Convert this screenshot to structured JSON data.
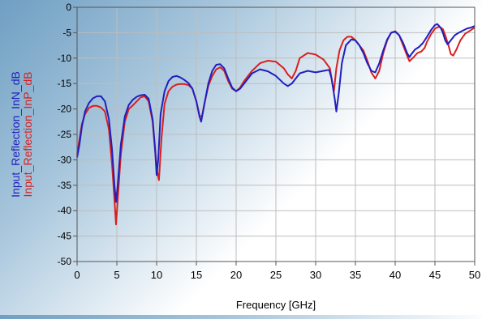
{
  "chart_data": {
    "type": "line",
    "title": "",
    "xlabel": "Frequency [GHz]",
    "ylabel": "",
    "xlim": [
      0,
      50
    ],
    "ylim": [
      -50,
      0
    ],
    "x_ticks": [
      0,
      5,
      10,
      15,
      20,
      25,
      30,
      35,
      40,
      45,
      50
    ],
    "y_ticks": [
      0,
      -5,
      -10,
      -15,
      -20,
      -25,
      -30,
      -35,
      -40,
      -45,
      -50
    ],
    "grid": true,
    "legend_placement": "left-vertical",
    "series": [
      {
        "name": "Input_Reflection_InN_dB",
        "color": "#1f1fbf",
        "points": [
          [
            0,
            -29.5
          ],
          [
            0.3,
            -27
          ],
          [
            0.6,
            -23.5
          ],
          [
            1,
            -20.5
          ],
          [
            1.5,
            -18.8
          ],
          [
            2,
            -17.9
          ],
          [
            2.5,
            -17.5
          ],
          [
            3,
            -17.5
          ],
          [
            3.5,
            -18.5
          ],
          [
            4,
            -22
          ],
          [
            4.4,
            -28
          ],
          [
            4.7,
            -35
          ],
          [
            4.9,
            -38.3
          ],
          [
            5.1,
            -35
          ],
          [
            5.5,
            -27
          ],
          [
            6,
            -21.5
          ],
          [
            6.5,
            -19.2
          ],
          [
            7,
            -18.2
          ],
          [
            7.5,
            -17.6
          ],
          [
            8,
            -17.3
          ],
          [
            8.5,
            -17.2
          ],
          [
            9,
            -18
          ],
          [
            9.5,
            -22
          ],
          [
            9.8,
            -27.5
          ],
          [
            10,
            -33
          ],
          [
            10.2,
            -30
          ],
          [
            10.5,
            -21
          ],
          [
            11,
            -16.5
          ],
          [
            11.5,
            -14.5
          ],
          [
            12,
            -13.7
          ],
          [
            12.5,
            -13.5
          ],
          [
            13,
            -13.8
          ],
          [
            13.5,
            -14.3
          ],
          [
            14,
            -14.9
          ],
          [
            14.5,
            -16
          ],
          [
            15,
            -18.5
          ],
          [
            15.4,
            -21.5
          ],
          [
            15.6,
            -22.5
          ],
          [
            15.9,
            -20
          ],
          [
            16.5,
            -15
          ],
          [
            17,
            -12.5
          ],
          [
            17.5,
            -11.3
          ],
          [
            18,
            -11.2
          ],
          [
            18.5,
            -12
          ],
          [
            19,
            -14
          ],
          [
            19.5,
            -15.8
          ],
          [
            20,
            -16.5
          ],
          [
            20.5,
            -16
          ],
          [
            21,
            -15
          ],
          [
            22,
            -13
          ],
          [
            23,
            -12.2
          ],
          [
            24,
            -12.6
          ],
          [
            25,
            -13.5
          ],
          [
            26,
            -15
          ],
          [
            26.5,
            -15.5
          ],
          [
            27,
            -15
          ],
          [
            28,
            -13
          ],
          [
            29,
            -12.5
          ],
          [
            30,
            -12.8
          ],
          [
            31,
            -12.5
          ],
          [
            31.7,
            -12.3
          ],
          [
            32,
            -14
          ],
          [
            32.4,
            -18
          ],
          [
            32.6,
            -20.5
          ],
          [
            32.9,
            -17
          ],
          [
            33.3,
            -11
          ],
          [
            33.8,
            -7.5
          ],
          [
            34.5,
            -6.3
          ],
          [
            35,
            -6.5
          ],
          [
            35.5,
            -7.5
          ],
          [
            36,
            -9
          ],
          [
            36.5,
            -11
          ],
          [
            37,
            -12.5
          ],
          [
            37.5,
            -12.8
          ],
          [
            38,
            -11
          ],
          [
            38.5,
            -8.5
          ],
          [
            39,
            -6.3
          ],
          [
            39.5,
            -5
          ],
          [
            40,
            -4.8
          ],
          [
            40.5,
            -5.5
          ],
          [
            41,
            -7
          ],
          [
            41.5,
            -9
          ],
          [
            41.8,
            -9.8
          ],
          [
            42,
            -9.3
          ],
          [
            42.5,
            -8.3
          ],
          [
            43,
            -7.8
          ],
          [
            43.5,
            -7
          ],
          [
            44,
            -5.8
          ],
          [
            44.5,
            -4.5
          ],
          [
            45,
            -3.5
          ],
          [
            45.3,
            -3.3
          ],
          [
            45.7,
            -4
          ],
          [
            46,
            -5
          ],
          [
            46.3,
            -6.5
          ],
          [
            46.6,
            -7.3
          ],
          [
            47,
            -6.5
          ],
          [
            47.5,
            -5.5
          ],
          [
            48,
            -5
          ],
          [
            48.5,
            -4.6
          ],
          [
            49,
            -4.2
          ],
          [
            49.5,
            -4
          ],
          [
            50,
            -3.7
          ]
        ]
      },
      {
        "name": "Input_Reflection_InP_dB",
        "color": "#d91f1f",
        "points": [
          [
            0,
            -29
          ],
          [
            0.3,
            -26
          ],
          [
            0.6,
            -23
          ],
          [
            1,
            -21
          ],
          [
            1.5,
            -19.8
          ],
          [
            2,
            -19.4
          ],
          [
            2.5,
            -19.4
          ],
          [
            3,
            -19.7
          ],
          [
            3.5,
            -20.5
          ],
          [
            4,
            -24
          ],
          [
            4.4,
            -31
          ],
          [
            4.7,
            -38
          ],
          [
            4.9,
            -42.7
          ],
          [
            5.1,
            -38
          ],
          [
            5.5,
            -29
          ],
          [
            6,
            -22.5
          ],
          [
            6.5,
            -20
          ],
          [
            7,
            -19.3
          ],
          [
            7.5,
            -18.5
          ],
          [
            8,
            -17.7
          ],
          [
            8.5,
            -17.5
          ],
          [
            9,
            -18.5
          ],
          [
            9.5,
            -22.5
          ],
          [
            9.8,
            -28
          ],
          [
            10.1,
            -32.5
          ],
          [
            10.3,
            -34
          ],
          [
            10.6,
            -26
          ],
          [
            11,
            -19
          ],
          [
            11.5,
            -16.5
          ],
          [
            12,
            -15.6
          ],
          [
            12.5,
            -15.2
          ],
          [
            13,
            -15.1
          ],
          [
            13.5,
            -15.1
          ],
          [
            14,
            -15.3
          ],
          [
            14.5,
            -16
          ],
          [
            15,
            -18.5
          ],
          [
            15.4,
            -21.3
          ],
          [
            15.7,
            -21.5
          ],
          [
            16,
            -19
          ],
          [
            16.5,
            -15.5
          ],
          [
            17,
            -13.5
          ],
          [
            17.5,
            -12.2
          ],
          [
            18,
            -11.8
          ],
          [
            18.5,
            -12.5
          ],
          [
            19,
            -14.5
          ],
          [
            19.5,
            -16
          ],
          [
            20,
            -16.5
          ],
          [
            20.5,
            -15.8
          ],
          [
            21,
            -14.5
          ],
          [
            22,
            -12.5
          ],
          [
            23,
            -11
          ],
          [
            24,
            -10.5
          ],
          [
            25,
            -10.7
          ],
          [
            26,
            -12
          ],
          [
            26.5,
            -13.2
          ],
          [
            27,
            -14
          ],
          [
            27.5,
            -12.5
          ],
          [
            28,
            -10
          ],
          [
            29,
            -9
          ],
          [
            30,
            -9.3
          ],
          [
            31,
            -10.3
          ],
          [
            31.8,
            -12
          ],
          [
            32.1,
            -15
          ],
          [
            32.3,
            -16.5
          ],
          [
            32.6,
            -12
          ],
          [
            33,
            -8.5
          ],
          [
            33.5,
            -6.5
          ],
          [
            34,
            -5.8
          ],
          [
            34.5,
            -5.8
          ],
          [
            35,
            -6.5
          ],
          [
            35.5,
            -7.5
          ],
          [
            36,
            -8.5
          ],
          [
            36.5,
            -10.5
          ],
          [
            37,
            -12.8
          ],
          [
            37.5,
            -14
          ],
          [
            38,
            -12.5
          ],
          [
            38.5,
            -9
          ],
          [
            39,
            -6.5
          ],
          [
            39.5,
            -5
          ],
          [
            40,
            -4.7
          ],
          [
            40.5,
            -5.5
          ],
          [
            41,
            -7.5
          ],
          [
            41.5,
            -9.5
          ],
          [
            41.8,
            -10.6
          ],
          [
            42.2,
            -10
          ],
          [
            42.8,
            -9
          ],
          [
            43.3,
            -8.7
          ],
          [
            43.7,
            -8
          ],
          [
            44,
            -6.8
          ],
          [
            44.5,
            -5.3
          ],
          [
            45,
            -4.2
          ],
          [
            45.5,
            -3.8
          ],
          [
            46,
            -4.3
          ],
          [
            46.3,
            -5.5
          ],
          [
            46.7,
            -7.5
          ],
          [
            47,
            -9.2
          ],
          [
            47.3,
            -9.5
          ],
          [
            47.7,
            -8.3
          ],
          [
            48.2,
            -6.5
          ],
          [
            48.8,
            -5.2
          ],
          [
            49.5,
            -4.5
          ],
          [
            50,
            -4
          ]
        ]
      }
    ]
  }
}
